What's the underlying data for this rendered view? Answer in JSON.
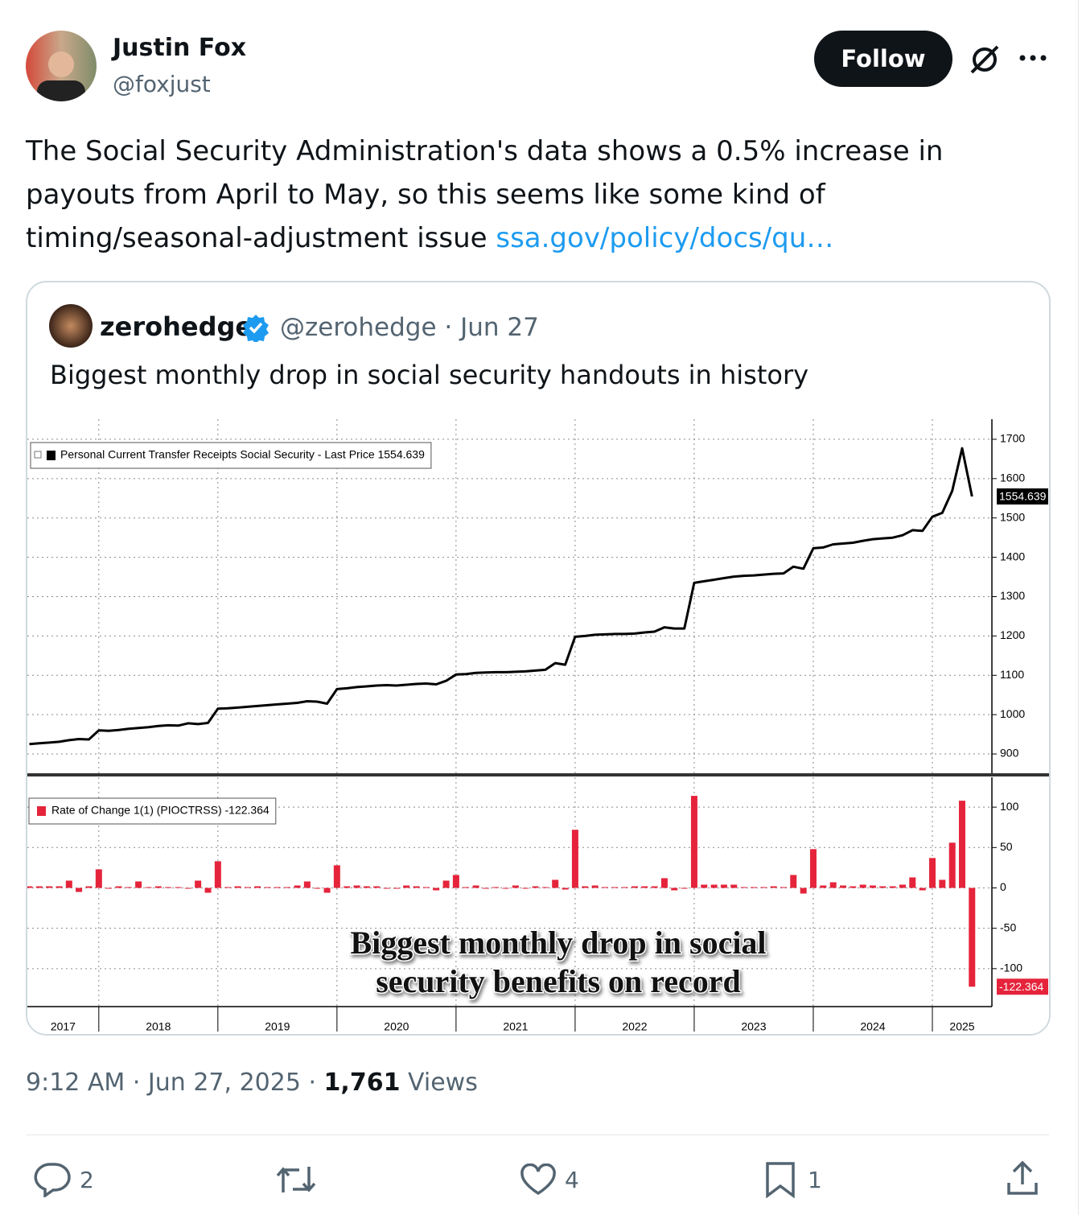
{
  "author": {
    "name": "Justin Fox",
    "handle": "@foxjust",
    "follow": "Follow"
  },
  "body": {
    "text": "The Social Security Administration's data shows a 0.5% increase in payouts from April to May, so this seems like some kind of timing/seasonal-adjustment issue",
    "link": "ssa.gov/policy/docs/qu…"
  },
  "quote": {
    "name": "zerohedge",
    "handle_date": "@zerohedge · Jun 27",
    "text": "Biggest monthly drop in social security handouts in history"
  },
  "meta": {
    "timestamp": "9:12 AM · Jun 27, 2025 ·",
    "views_count": "1,761",
    "views_label": "Views"
  },
  "actions": {
    "replies": 2,
    "likes": 4,
    "bookmarks": 1
  },
  "chart_data": [
    {
      "type": "line",
      "last_value_label": "1554.639",
      "xlim": [
        2017.4,
        2025.5
      ],
      "ylim": [
        851,
        1751
      ],
      "yticks": [
        900,
        1000,
        1100,
        1200,
        1300,
        1400,
        1500,
        1600,
        1700
      ],
      "grid": true,
      "x": [
        2017.417,
        2017.5,
        2017.583,
        2017.667,
        2017.75,
        2017.833,
        2017.917,
        2018,
        2018.083,
        2018.167,
        2018.25,
        2018.333,
        2018.417,
        2018.5,
        2018.583,
        2018.667,
        2018.75,
        2018.833,
        2018.917,
        2019,
        2019.083,
        2019.167,
        2019.25,
        2019.333,
        2019.417,
        2019.5,
        2019.583,
        2019.667,
        2019.75,
        2019.833,
        2019.917,
        2020,
        2020.083,
        2020.167,
        2020.25,
        2020.333,
        2020.417,
        2020.5,
        2020.583,
        2020.667,
        2020.75,
        2020.833,
        2020.917,
        2021,
        2021.083,
        2021.167,
        2021.25,
        2021.333,
        2021.417,
        2021.5,
        2021.583,
        2021.667,
        2021.75,
        2021.833,
        2021.917,
        2022,
        2022.083,
        2022.167,
        2022.25,
        2022.333,
        2022.417,
        2022.5,
        2022.583,
        2022.667,
        2022.75,
        2022.833,
        2022.917,
        2023,
        2023.083,
        2023.167,
        2023.25,
        2023.333,
        2023.417,
        2023.5,
        2023.583,
        2023.667,
        2023.75,
        2023.833,
        2023.917,
        2024,
        2024.083,
        2024.167,
        2024.25,
        2024.333,
        2024.417,
        2024.5,
        2024.583,
        2024.667,
        2024.75,
        2024.833,
        2024.917,
        2025,
        2025.083,
        2025.167,
        2025.25,
        2025.333
      ],
      "series": [
        {
          "name": "Personal Current Transfer Receipts Social Security - Last Price 1554.639",
          "color": "#000000",
          "values": [
            925,
            927,
            929,
            931,
            935,
            938,
            937,
            960,
            959,
            961,
            964,
            966,
            968,
            971,
            973,
            972,
            978,
            976,
            979,
            1015,
            1016,
            1018,
            1020,
            1022,
            1024,
            1026,
            1028,
            1030,
            1034,
            1033,
            1028,
            1065,
            1067,
            1070,
            1072,
            1074,
            1075,
            1074,
            1076,
            1078,
            1079,
            1077,
            1086,
            1102,
            1103,
            1106,
            1107,
            1108,
            1108,
            1109,
            1110,
            1112,
            1114,
            1131,
            1127,
            1198,
            1200,
            1203,
            1204,
            1205,
            1205,
            1206,
            1209,
            1211,
            1222,
            1219,
            1219,
            1335,
            1339,
            1343,
            1347,
            1351,
            1353,
            1354,
            1356,
            1358,
            1359,
            1376,
            1371,
            1423,
            1425,
            1433,
            1435,
            1437,
            1442,
            1446,
            1448,
            1450,
            1456,
            1469,
            1467,
            1503,
            1513,
            1569,
            1677,
            1554.639
          ]
        }
      ]
    },
    {
      "type": "bar",
      "last_value_label": "-122.364",
      "annotation": [
        "Biggest monthly drop in social",
        "security benefits on record"
      ],
      "xlim": [
        2017.4,
        2025.5
      ],
      "ylim": [
        -147,
        137
      ],
      "yticks": [
        -100,
        -50,
        0,
        50,
        100
      ],
      "grid": true,
      "xticks": [
        {
          "value": 2017,
          "label": "2017"
        },
        {
          "value": 2018,
          "label": "2018"
        },
        {
          "value": 2019,
          "label": "2019"
        },
        {
          "value": 2020,
          "label": "2020"
        },
        {
          "value": 2021,
          "label": "2021"
        },
        {
          "value": 2022,
          "label": "2022"
        },
        {
          "value": 2023,
          "label": "2023"
        },
        {
          "value": 2024,
          "label": "2024"
        },
        {
          "value": 2025,
          "label": "2025"
        }
      ],
      "x": [
        2017.417,
        2017.5,
        2017.583,
        2017.667,
        2017.75,
        2017.833,
        2017.917,
        2018,
        2018.083,
        2018.167,
        2018.25,
        2018.333,
        2018.417,
        2018.5,
        2018.583,
        2018.667,
        2018.75,
        2018.833,
        2018.917,
        2019,
        2019.083,
        2019.167,
        2019.25,
        2019.333,
        2019.417,
        2019.5,
        2019.583,
        2019.667,
        2019.75,
        2019.833,
        2019.917,
        2020,
        2020.083,
        2020.167,
        2020.25,
        2020.333,
        2020.417,
        2020.5,
        2020.583,
        2020.667,
        2020.75,
        2020.833,
        2020.917,
        2021,
        2021.083,
        2021.167,
        2021.25,
        2021.333,
        2021.417,
        2021.5,
        2021.583,
        2021.667,
        2021.75,
        2021.833,
        2021.917,
        2022,
        2022.083,
        2022.167,
        2022.25,
        2022.333,
        2022.417,
        2022.5,
        2022.583,
        2022.667,
        2022.75,
        2022.833,
        2022.917,
        2023,
        2023.083,
        2023.167,
        2023.25,
        2023.333,
        2023.417,
        2023.5,
        2023.583,
        2023.667,
        2023.75,
        2023.833,
        2023.917,
        2024,
        2024.083,
        2024.167,
        2024.25,
        2024.333,
        2024.417,
        2024.5,
        2024.583,
        2024.667,
        2024.75,
        2024.833,
        2024.917,
        2025,
        2025.083,
        2025.167,
        2025.25,
        2025.333
      ],
      "series": [
        {
          "name": "Rate of Change 1(1) (PIOCTRSS) -122.364",
          "color": "#e5243b",
          "values": [
            2,
            2,
            2,
            2,
            9,
            -5,
            2,
            23,
            0,
            2,
            1,
            8,
            1,
            2,
            1,
            1,
            -1,
            9,
            -6,
            33,
            1,
            2,
            1,
            2,
            1,
            1,
            1,
            3,
            8,
            -1,
            -6,
            28,
            2,
            3,
            2,
            2,
            0,
            -1,
            3,
            2,
            1,
            -3,
            9,
            16,
            1,
            3,
            0,
            1,
            0,
            3,
            0,
            2,
            1,
            10,
            -2,
            72,
            2,
            3,
            1,
            1,
            1,
            2,
            2,
            2,
            12,
            -3,
            0,
            114,
            4,
            4,
            4,
            4,
            1,
            1,
            1,
            2,
            1,
            16,
            -7,
            48,
            3,
            7,
            3,
            2,
            4,
            3,
            2,
            2,
            4,
            13,
            -3,
            37,
            10,
            56,
            108,
            -122.364
          ]
        }
      ]
    }
  ]
}
